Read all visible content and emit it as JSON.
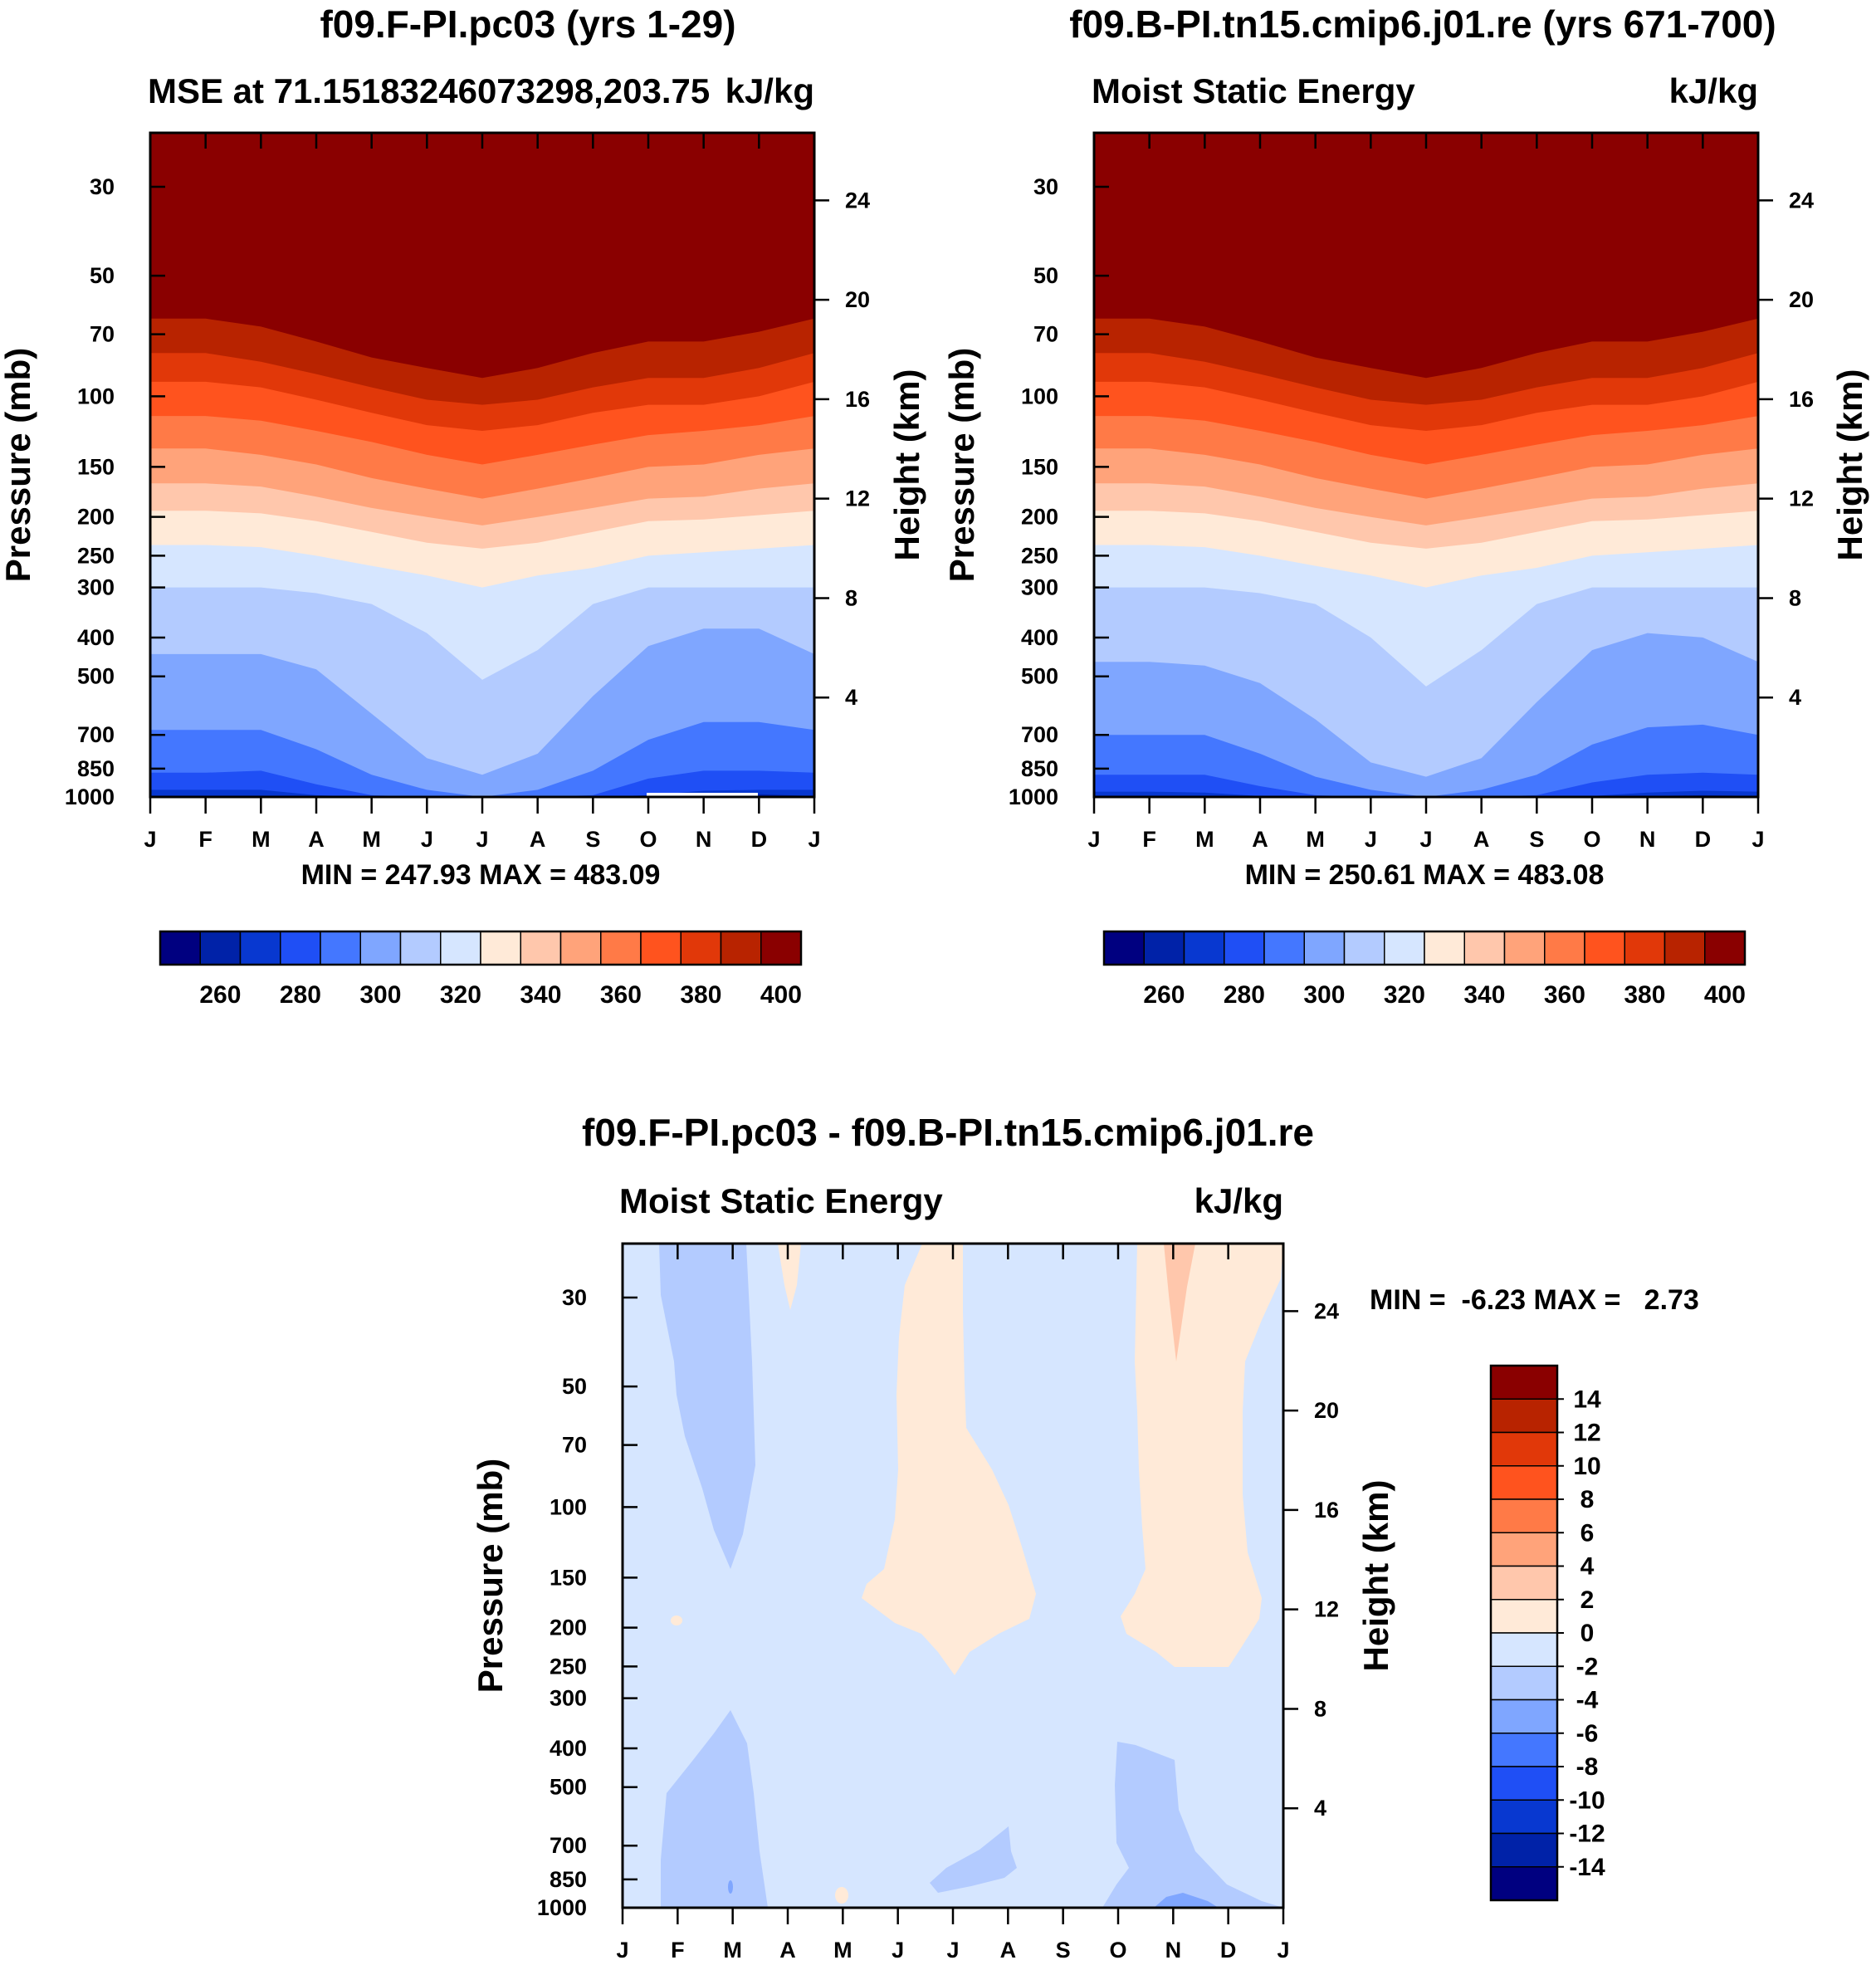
{
  "colors": {
    "full_palette": [
      "#000080",
      "#0022A8",
      "#0838D0",
      "#1F4FF5",
      "#4477FF",
      "#7FA6FF",
      "#B3CBFF",
      "#D6E6FF",
      "#FFEAD8",
      "#FFC7AC",
      "#FFA37A",
      "#FF7A47",
      "#FF531E",
      "#E13809",
      "#B82300",
      "#8A0000"
    ],
    "mid_palette": [
      "#000080",
      "#0022A8",
      "#0838D0",
      "#1F4FF5",
      "#4477FF",
      "#7FA6FF",
      "#B3CBFF",
      "#D6E6FF",
      "#FFEAD8",
      "#FFC7AC",
      "#FFA37A",
      "#FF7A47",
      "#FF531E",
      "#E13809",
      "#B82300",
      "#8A0000"
    ]
  },
  "chart_data": [
    {
      "type": "heatmap",
      "plot_type": "filled contour (month x pressure)",
      "title": "f09.F-PI.pc03 (yrs 1-29)",
      "subtitle_left": "MSE at 71.15183246073298,203.75",
      "subtitle_left_display": "MSE at 71.15183246073298,203.75",
      "subtitle_right": "kJ/kg",
      "ylabel": "Pressure (mb)",
      "ylabel_right": "Height (km)",
      "x_tick_labels": [
        "J",
        "F",
        "M",
        "A",
        "M",
        "J",
        "J",
        "A",
        "S",
        "O",
        "N",
        "D",
        "J"
      ],
      "y_ticks": [
        30,
        50,
        70,
        100,
        150,
        200,
        250,
        300,
        400,
        500,
        700,
        850,
        1000
      ],
      "y_ticks_right": [
        24,
        20,
        16,
        12,
        8,
        4
      ],
      "stats": "MIN = 247.93 MAX = 483.09",
      "min": 247.93,
      "max": 483.09,
      "colorbar": {
        "orientation": "horizontal",
        "levels": [
          255,
          265,
          275,
          285,
          295,
          305,
          315,
          325,
          335,
          345,
          355,
          365,
          375,
          385,
          395
        ],
        "tick_labels": [
          "260",
          "280",
          "300",
          "320",
          "340",
          "360",
          "380",
          "400"
        ]
      },
      "contour_boundaries_pressure_mb": {
        "months": [
          "J",
          "F",
          "M",
          "A",
          "M",
          "J",
          "J",
          "A",
          "S",
          "O",
          "N",
          "D",
          "J"
        ],
        "395": [
          64,
          64,
          67,
          73,
          80,
          85,
          90,
          85,
          78,
          73,
          73,
          69,
          64
        ],
        "385": [
          78,
          78,
          82,
          88,
          95,
          102,
          105,
          102,
          95,
          90,
          90,
          85,
          78
        ],
        "375": [
          92,
          92,
          95,
          102,
          110,
          118,
          122,
          118,
          110,
          105,
          105,
          100,
          92
        ],
        "365": [
          112,
          112,
          115,
          122,
          130,
          140,
          148,
          140,
          132,
          125,
          122,
          118,
          112
        ],
        "355": [
          135,
          135,
          140,
          148,
          160,
          170,
          180,
          170,
          160,
          150,
          148,
          140,
          135
        ],
        "345": [
          165,
          165,
          168,
          178,
          190,
          200,
          210,
          200,
          190,
          180,
          178,
          170,
          165
        ],
        "335": [
          193,
          193,
          196,
          205,
          218,
          232,
          240,
          232,
          218,
          205,
          203,
          198,
          193
        ],
        "325": [
          235,
          235,
          238,
          250,
          265,
          280,
          300,
          280,
          268,
          250,
          245,
          240,
          235
        ],
        "315": [
          300,
          300,
          300,
          310,
          330,
          390,
          510,
          430,
          330,
          300,
          300,
          300,
          300
        ],
        "305": [
          440,
          440,
          440,
          480,
          620,
          800,
          880,
          780,
          560,
          420,
          380,
          380,
          440
        ],
        "295": [
          680,
          680,
          680,
          760,
          880,
          960,
          1000,
          960,
          860,
          720,
          650,
          650,
          680
        ],
        "285": [
          870,
          870,
          860,
          930,
          990,
          1000,
          1000,
          1000,
          990,
          900,
          860,
          860,
          870
        ],
        "275": [
          960,
          960,
          960,
          990,
          1000,
          1000,
          1000,
          1000,
          1000,
          990,
          965,
          960,
          960
        ],
        "265": [
          995,
          995,
          995,
          1000,
          1000,
          1000,
          1000,
          1000,
          1000,
          1000,
          990,
          985,
          995
        ]
      }
    },
    {
      "type": "heatmap",
      "plot_type": "filled contour (month x pressure)",
      "title": "f09.B-PI.tn15.cmip6.j01.re (yrs 671-700)",
      "subtitle_left": "Moist Static Energy",
      "subtitle_right": "kJ/kg",
      "ylabel": "Pressure (mb)",
      "ylabel_right": "Height (km)",
      "x_tick_labels": [
        "J",
        "F",
        "M",
        "A",
        "M",
        "J",
        "J",
        "A",
        "S",
        "O",
        "N",
        "D",
        "J"
      ],
      "y_ticks": [
        30,
        50,
        70,
        100,
        150,
        200,
        250,
        300,
        400,
        500,
        700,
        850,
        1000
      ],
      "y_ticks_right": [
        24,
        20,
        16,
        12,
        8,
        4
      ],
      "stats": "MIN = 250.61 MAX = 483.08",
      "min": 250.61,
      "max": 483.08,
      "colorbar": {
        "orientation": "horizontal",
        "levels": [
          255,
          265,
          275,
          285,
          295,
          305,
          315,
          325,
          335,
          345,
          355,
          365,
          375,
          385,
          395
        ],
        "tick_labels": [
          "260",
          "280",
          "300",
          "320",
          "340",
          "360",
          "380",
          "400"
        ]
      },
      "contour_boundaries_pressure_mb": {
        "months": [
          "J",
          "F",
          "M",
          "A",
          "M",
          "J",
          "J",
          "A",
          "S",
          "O",
          "N",
          "D",
          "J"
        ],
        "395": [
          64,
          64,
          67,
          73,
          80,
          85,
          90,
          85,
          78,
          73,
          73,
          69,
          64
        ],
        "385": [
          78,
          78,
          82,
          88,
          95,
          102,
          105,
          102,
          95,
          90,
          90,
          85,
          78
        ],
        "375": [
          92,
          92,
          95,
          102,
          110,
          118,
          122,
          118,
          110,
          105,
          105,
          100,
          92
        ],
        "365": [
          112,
          112,
          115,
          122,
          130,
          140,
          148,
          140,
          132,
          125,
          122,
          118,
          112
        ],
        "355": [
          135,
          135,
          140,
          148,
          160,
          170,
          180,
          170,
          160,
          150,
          148,
          140,
          135
        ],
        "345": [
          165,
          165,
          168,
          178,
          190,
          200,
          210,
          200,
          190,
          180,
          178,
          170,
          165
        ],
        "335": [
          193,
          193,
          196,
          205,
          218,
          232,
          240,
          232,
          218,
          205,
          203,
          198,
          193
        ],
        "325": [
          235,
          235,
          238,
          250,
          265,
          280,
          300,
          280,
          268,
          250,
          245,
          240,
          235
        ],
        "315": [
          300,
          300,
          300,
          310,
          330,
          400,
          530,
          430,
          330,
          300,
          300,
          300,
          300
        ],
        "305": [
          460,
          460,
          470,
          520,
          640,
          820,
          890,
          800,
          580,
          430,
          390,
          400,
          460
        ],
        "295": [
          700,
          700,
          700,
          780,
          890,
          960,
          1000,
          960,
          880,
          740,
          670,
          660,
          700
        ],
        "285": [
          880,
          880,
          880,
          940,
          990,
          1000,
          1000,
          1000,
          990,
          920,
          880,
          870,
          880
        ],
        "275": [
          970,
          970,
          975,
          995,
          1000,
          1000,
          1000,
          1000,
          1000,
          995,
          975,
          965,
          970
        ],
        "265": [
          995,
          995,
          1000,
          1000,
          1000,
          1000,
          1000,
          1000,
          1000,
          1000,
          995,
          990,
          995
        ]
      }
    },
    {
      "type": "heatmap",
      "plot_type": "filled contour difference (month x pressure)",
      "title": "f09.F-PI.pc03 - f09.B-PI.tn15.cmip6.j01.re",
      "subtitle_left": "Moist Static Energy",
      "subtitle_right": "kJ/kg",
      "ylabel": "Pressure (mb)",
      "ylabel_right": "Height (km)",
      "x_tick_labels": [
        "J",
        "F",
        "M",
        "A",
        "M",
        "J",
        "J",
        "A",
        "S",
        "O",
        "N",
        "D",
        "J"
      ],
      "y_ticks": [
        30,
        50,
        70,
        100,
        150,
        200,
        250,
        300,
        400,
        500,
        700,
        850,
        1000
      ],
      "y_ticks_right": [
        24,
        20,
        16,
        12,
        8,
        4
      ],
      "stats": "MIN =  -6.23 MAX =   2.73",
      "min": -6.23,
      "max": 2.73,
      "background_range": "-2 to 0",
      "colorbar": {
        "orientation": "vertical",
        "levels": [
          -14,
          -12,
          -10,
          -8,
          -6,
          -4,
          -2,
          0,
          2,
          4,
          6,
          8,
          10,
          12,
          14
        ],
        "tick_labels": [
          "14",
          "12",
          "10",
          "8",
          "6",
          "4",
          "2",
          "0",
          "-2",
          "-4",
          "-6",
          "-8",
          "-10",
          "-12",
          "-14"
        ]
      },
      "regions": [
        {
          "range": "-4 to -2",
          "description": "column from Jan-Mar, 20-150 mb"
        },
        {
          "range": "0 to 2",
          "description": "thin spike near Apr, 20-30 mb"
        },
        {
          "range": "0 to 2",
          "description": "Jun-Aug from top down to ~300 mb"
        },
        {
          "range": "0 to 2",
          "description": "Oct-Dec from top down to ~250 mb"
        },
        {
          "range": "2 to 4",
          "description": "small wedge near Nov, 20-45 mb"
        },
        {
          "range": "-4 to -2",
          "description": "Jan-Mar lower troposphere, 350-1000 mb"
        },
        {
          "range": "-4 to -2",
          "description": "Oct-Dec lower troposphere, 420-1000 mb"
        },
        {
          "range": "-4 to -2",
          "description": "Jul-Aug near surface, 730-900 mb"
        }
      ]
    }
  ]
}
